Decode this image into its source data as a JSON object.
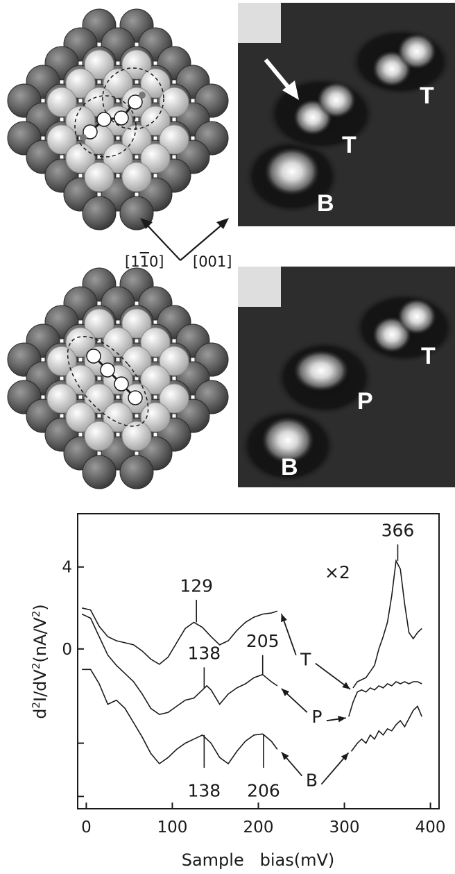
{
  "figure": {
    "directions": [
      "[1̅1̅0]",
      "[001]"
    ],
    "direction_parts": {
      "a_open": "[1",
      "a_bar1": "1",
      "a_bar2": "1",
      "a_close": "0]",
      "b": "[001]"
    },
    "stm_top_labels": {
      "t1": "T",
      "t2": "T",
      "b": "B"
    },
    "stm_bottom_labels": {
      "t": "T",
      "p": "P",
      "b": "B"
    }
  },
  "chart_data": {
    "type": "line",
    "xlabel": "Sample   bias(mV)",
    "ylabel": "d²I/dV²(nA/V²)",
    "ylabel_parts": {
      "a": "d",
      "sup1": "2",
      "b": "I/dV",
      "sup2": "2",
      "c": "(nA/V",
      "sup3": "2",
      "d": ")"
    },
    "xlim": [
      -10,
      410
    ],
    "ylim": [
      -7.8,
      6.6
    ],
    "xticks": [
      0,
      100,
      200,
      300,
      400
    ],
    "xtick_labels": [
      "0",
      "100",
      "200",
      "300",
      "400"
    ],
    "yticks": [
      4,
      0
    ],
    "ytick_labels": [
      "4",
      "0"
    ],
    "grid": false,
    "legend": "none",
    "scale_note": "×2",
    "series": [
      {
        "name": "T",
        "low": {
          "x": [
            -5,
            5,
            15,
            25,
            35,
            45,
            55,
            65,
            75,
            85,
            95,
            105,
            115,
            125,
            135,
            145,
            155,
            165,
            175,
            185,
            195,
            205,
            215,
            222
          ],
          "y": [
            2.0,
            1.9,
            1.1,
            0.6,
            0.4,
            0.3,
            0.2,
            -0.1,
            -0.5,
            -0.75,
            -0.4,
            0.3,
            1.0,
            1.3,
            1.05,
            0.6,
            0.2,
            0.4,
            0.9,
            1.3,
            1.55,
            1.7,
            1.75,
            1.85
          ]
        },
        "high": {
          "x": [
            310,
            315,
            320,
            325,
            330,
            335,
            340,
            345,
            350,
            355,
            360,
            365,
            370,
            375,
            380,
            385,
            390
          ],
          "y": [
            -1.9,
            -1.6,
            -1.5,
            -1.4,
            -1.1,
            -0.8,
            0.0,
            0.6,
            1.3,
            2.6,
            4.3,
            3.9,
            2.2,
            0.8,
            0.5,
            0.8,
            1.0
          ]
        }
      },
      {
        "name": "P",
        "low": {
          "x": [
            -5,
            5,
            15,
            25,
            35,
            45,
            55,
            65,
            75,
            85,
            95,
            105,
            115,
            125,
            135,
            140,
            145,
            155,
            165,
            175,
            185,
            195,
            205,
            215,
            222
          ],
          "y": [
            1.7,
            1.5,
            0.6,
            -0.3,
            -0.8,
            -1.2,
            -1.6,
            -2.2,
            -2.9,
            -3.2,
            -3.1,
            -2.8,
            -2.5,
            -2.4,
            -2.0,
            -1.8,
            -2.0,
            -2.7,
            -2.2,
            -1.9,
            -1.7,
            -1.4,
            -1.25,
            -1.6,
            -1.8
          ]
        },
        "high": {
          "x": [
            305,
            310,
            315,
            320,
            325,
            330,
            335,
            340,
            345,
            350,
            355,
            360,
            365,
            370,
            375,
            380,
            385,
            390
          ],
          "y": [
            -3.3,
            -2.6,
            -2.1,
            -2.0,
            -2.1,
            -1.9,
            -2.0,
            -1.8,
            -1.9,
            -1.7,
            -1.8,
            -1.6,
            -1.7,
            -1.6,
            -1.7,
            -1.6,
            -1.6,
            -1.7
          ]
        }
      },
      {
        "name": "B",
        "low": {
          "x": [
            -5,
            5,
            15,
            25,
            35,
            45,
            55,
            65,
            75,
            85,
            95,
            105,
            115,
            125,
            135,
            145,
            155,
            165,
            175,
            185,
            195,
            205,
            215,
            222
          ],
          "y": [
            -1.0,
            -1.0,
            -1.7,
            -2.7,
            -2.5,
            -2.9,
            -3.6,
            -4.3,
            -5.1,
            -5.6,
            -5.3,
            -4.9,
            -4.6,
            -4.4,
            -4.2,
            -4.6,
            -5.3,
            -5.6,
            -5.0,
            -4.5,
            -4.2,
            -4.15,
            -4.5,
            -4.9
          ]
        },
        "high": {
          "x": [
            308,
            315,
            320,
            325,
            330,
            335,
            340,
            345,
            350,
            355,
            360,
            365,
            370,
            375,
            380,
            385,
            390
          ],
          "y": [
            -5.0,
            -4.6,
            -4.4,
            -4.6,
            -4.2,
            -4.4,
            -4.0,
            -4.2,
            -3.9,
            -4.0,
            -3.7,
            -3.5,
            -3.8,
            -3.4,
            -3.0,
            -2.8,
            -3.3
          ]
        }
      }
    ],
    "peak_labels": [
      {
        "text": "129",
        "x": 128,
        "y": 1.3,
        "tip": 2.4,
        "label_y": 3.0,
        "side": "above"
      },
      {
        "text": "366",
        "x": 362,
        "y": 4.3,
        "tip": 5.1,
        "label_y": 5.7,
        "side": "above"
      },
      {
        "text": "138",
        "x": 137,
        "y": -1.9,
        "tip": -0.9,
        "label_y": -0.3,
        "side": "above"
      },
      {
        "text": "205",
        "x": 205,
        "y": -1.25,
        "tip": -0.3,
        "label_y": 0.3,
        "side": "above"
      },
      {
        "text": "138",
        "x": 137,
        "y": -4.2,
        "tip": -5.8,
        "label_y": -6.8,
        "side": "below"
      },
      {
        "text": "206",
        "x": 206,
        "y": -4.15,
        "tip": -5.8,
        "label_y": -6.8,
        "side": "below"
      }
    ],
    "curve_labels": [
      {
        "text": "T",
        "label_x": 255,
        "label_y": -0.5
      },
      {
        "text": "P",
        "label_x": 268,
        "label_y": -3.3
      },
      {
        "text": "B",
        "label_x": 262,
        "label_y": -6.4
      }
    ],
    "colors": {
      "line": "#1a1a1a"
    }
  }
}
